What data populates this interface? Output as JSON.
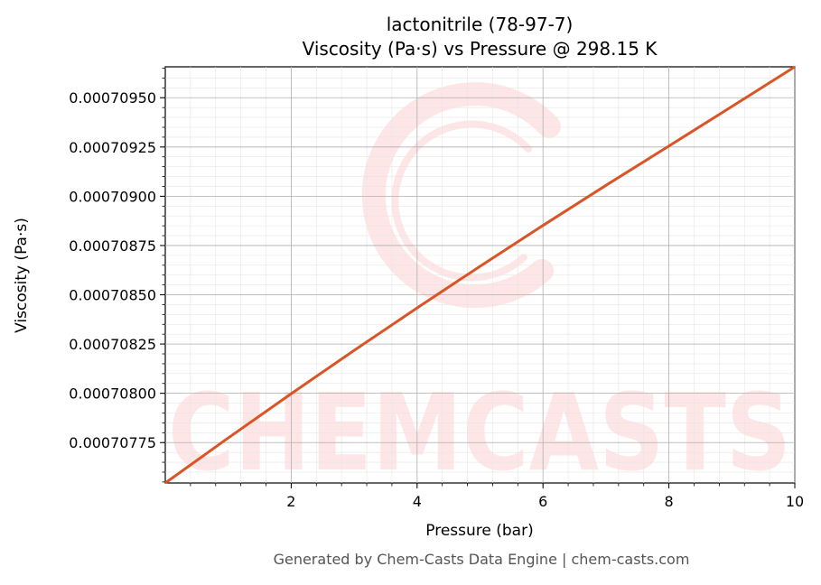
{
  "chart_data": {
    "type": "line",
    "title": "lactonitrile (78-97-7)",
    "subtitle": "Viscosity (Pa·s) vs Pressure @ 298.15 K",
    "xlabel": "Pressure (bar)",
    "ylabel": "Viscosity (Pa·s)",
    "xlim": [
      0.0,
      10.0
    ],
    "ylim": [
      0.0007075449,
      0.0007096569
    ],
    "x_ticks": [
      2,
      4,
      6,
      8,
      10
    ],
    "x_tick_labels": [
      "2",
      "4",
      "6",
      "8",
      "10"
    ],
    "y_ticks": [
      0.00070775,
      0.000708,
      0.00070825,
      0.0007085,
      0.00070875,
      0.000709,
      0.00070925,
      0.0007095
    ],
    "y_tick_labels": [
      "0.00070775",
      "0.00070800",
      "0.00070825",
      "0.00070850",
      "0.00070875",
      "0.00070900",
      "0.00070925",
      "0.00070950"
    ],
    "grid": true,
    "series": [
      {
        "color": "#d95525",
        "x": [
          0.0,
          1.0,
          2.0,
          3.0,
          4.0,
          5.0,
          6.0,
          7.0,
          8.0,
          9.0,
          10.0
        ],
        "values": [
          0.0007075449,
          0.0007077736,
          0.0007079978,
          0.0007082177,
          0.0007084332,
          0.0007086447,
          0.000708852,
          0.0007090553,
          0.0007092548,
          0.0007094554,
          0.0007096569
        ]
      }
    ]
  },
  "watermark": "CHEMCASTS",
  "footer": "Generated by Chem-Casts Data Engine | chem-casts.com"
}
